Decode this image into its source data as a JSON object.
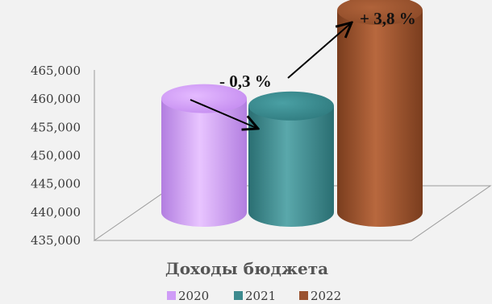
{
  "chart_data": {
    "type": "bar",
    "style": "3d-cylinder",
    "title": "",
    "xlabel": "Доходы бюджета",
    "ylabel": "",
    "ylim": [
      435000,
      465000
    ],
    "yticks": [
      "435,000",
      "440,000",
      "445,000",
      "450,000",
      "455,000",
      "460,000",
      "465,000"
    ],
    "categories": [
      "2020",
      "2021",
      "2022"
    ],
    "series": [
      {
        "name": "2020",
        "value": 448700,
        "color": "#cf9cf7"
      },
      {
        "name": "2021",
        "value": 447400,
        "color": "#3d8a8e"
      },
      {
        "name": "2022",
        "value": 464300,
        "color": "#9a5230"
      }
    ],
    "annotations": [
      {
        "text": "- 0,3 %",
        "between": [
          "2020",
          "2021"
        ]
      },
      {
        "text": "+ 3,8 %",
        "between": [
          "2021",
          "2022"
        ]
      }
    ],
    "legend": {
      "position": "bottom",
      "items": [
        "2020",
        "2021",
        "2022"
      ]
    },
    "grid": false
  }
}
